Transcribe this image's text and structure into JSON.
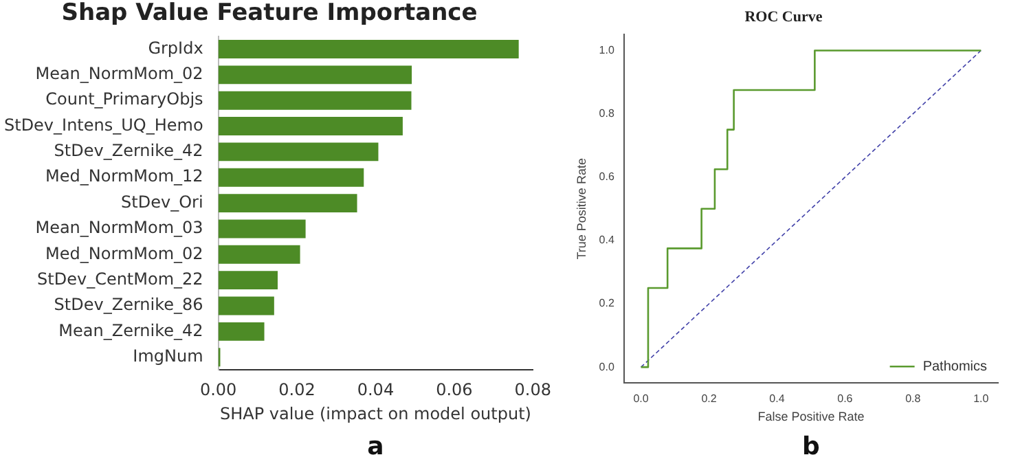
{
  "chart_data": [
    {
      "type": "bar",
      "orientation": "horizontal",
      "title": "Shap Value Feature Importance",
      "xlabel": "SHAP value (impact on model output)",
      "categories": [
        "GrpIdx",
        "Mean_NormMom_02",
        "Count_PrimaryObjs",
        "StDev_Intens_UQ_Hemo",
        "StDev_Zernike_42",
        "Med_NormMom_12",
        "StDev_Ori",
        "Mean_NormMom_03",
        "Med_NormMom_02",
        "StDev_CentMom_22",
        "StDev_Zernike_86",
        "Mean_Zernike_42",
        "ImgNum"
      ],
      "values": [
        0.0764,
        0.0492,
        0.0491,
        0.0469,
        0.0407,
        0.037,
        0.0353,
        0.0222,
        0.0208,
        0.0151,
        0.0142,
        0.0117,
        0.0005
      ],
      "color": "#4d8b26",
      "xlim": [
        0,
        0.08
      ],
      "xticks": [
        {
          "value": 0,
          "label": "0.00"
        },
        {
          "value": 0.02,
          "label": "0.02"
        },
        {
          "value": 0.04,
          "label": "0.04"
        },
        {
          "value": 0.06,
          "label": "0.06"
        },
        {
          "value": 0.08,
          "label": "0.08"
        }
      ],
      "annotations": [
        "a"
      ]
    },
    {
      "type": "line",
      "title": "ROC Curve",
      "xlabel": "False Positive Rate",
      "ylabel": "True Positive Rate",
      "legend": "bottom right",
      "marker": "none",
      "series": [
        {
          "name": "Pathomics",
          "color": "#5a9a2e",
          "line_style": "solid",
          "x": [
            0,
            0.021,
            0.021,
            0.078,
            0.078,
            0.178,
            0.178,
            0.217,
            0.217,
            0.254,
            0.254,
            0.273,
            0.273,
            0.511,
            0.511,
            1
          ],
          "values": [
            0,
            0,
            0.25,
            0.25,
            0.375,
            0.375,
            0.5,
            0.5,
            0.625,
            0.625,
            0.75,
            0.75,
            0.875,
            0.875,
            1,
            1
          ]
        },
        {
          "color": "#4040a8",
          "line_style": "dashed",
          "x": [
            0,
            1
          ],
          "values": [
            0,
            1
          ]
        }
      ],
      "xlim": [
        -0.05,
        1.05
      ],
      "ylim": [
        -0.05,
        1.05
      ],
      "xticks": [
        {
          "value": 0,
          "label": "0.0"
        },
        {
          "value": 0.2,
          "label": "0.2"
        },
        {
          "value": 0.4,
          "label": "0.4"
        },
        {
          "value": 0.6,
          "label": "0.6"
        },
        {
          "value": 0.8,
          "label": "0.8"
        },
        {
          "value": 1,
          "label": "1.0"
        }
      ],
      "yticks": [
        {
          "value": 0,
          "label": "0.0"
        },
        {
          "value": 0.2,
          "label": "0.2"
        },
        {
          "value": 0.4,
          "label": "0.4"
        },
        {
          "value": 0.6,
          "label": "0.6"
        },
        {
          "value": 0.8,
          "label": "0.8"
        },
        {
          "value": 1,
          "label": "1.0"
        }
      ],
      "annotations": [
        "b"
      ]
    }
  ]
}
